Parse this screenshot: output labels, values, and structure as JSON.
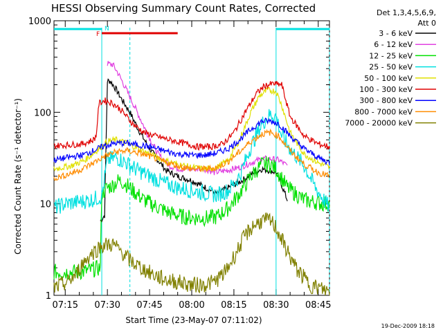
{
  "colors": {
    "background": "#ffffff",
    "axis": "#000000",
    "day_night_bar": "#00e0e0",
    "flare_flag": "#e00000"
  },
  "chart_data": {
    "type": "line",
    "title": "HESSI Observing Summary Count Rates, Corrected",
    "xlabel": "Start Time (23-May-07 07:11:02)",
    "ylabel": "Corrected Count Rate (s⁻¹ detector⁻¹)",
    "y_scale": "log",
    "ylim": [
      1,
      1000
    ],
    "xlim": [
      "07:11",
      "08:49"
    ],
    "x_ticks": [
      "07:15",
      "07:30",
      "07:45",
      "08:00",
      "08:15",
      "08:30",
      "08:45"
    ],
    "y_ticks": [
      "1",
      "10",
      "100",
      "1000"
    ],
    "grid": false,
    "legend": {
      "header": [
        "Det 1,3,4,5,6,9,",
        "Att 0"
      ],
      "placement": "outside-right"
    },
    "annotations": {
      "night_bars": [
        [
          "07:11",
          "07:28"
        ],
        [
          "08:30",
          "08:49"
        ]
      ],
      "saa_lines": [
        "07:28",
        "07:38",
        "08:30",
        "08:49"
      ],
      "flare_flag": {
        "label": "F",
        "start": "07:28",
        "end": "07:55"
      },
      "night_label": "N"
    },
    "series": [
      {
        "name": "3 - 6 keV",
        "color": "#000000",
        "points": [
          [
            "07:27:30",
            6.5
          ],
          [
            "07:29",
            7.5
          ],
          [
            "07:30",
            220
          ],
          [
            "07:31",
            220
          ],
          [
            "07:33",
            180
          ],
          [
            "07:35",
            140
          ],
          [
            "07:38",
            100
          ],
          [
            "07:41",
            65
          ],
          [
            "07:45",
            40
          ],
          [
            "07:48",
            30
          ],
          [
            "07:51",
            23
          ],
          [
            "07:55",
            20
          ],
          [
            "08:00",
            18
          ],
          [
            "08:05",
            15
          ],
          [
            "08:09",
            13
          ],
          [
            "08:13",
            15
          ],
          [
            "08:18",
            18
          ],
          [
            "08:22",
            22
          ],
          [
            "08:25",
            24
          ],
          [
            "08:28",
            23
          ],
          [
            "08:30",
            22
          ],
          [
            "08:32",
            16
          ],
          [
            "08:34",
            11
          ]
        ]
      },
      {
        "name": "6 - 12 keV",
        "color": "#e040e0",
        "points": [
          [
            "07:30",
            340
          ],
          [
            "07:32",
            330
          ],
          [
            "07:34",
            260
          ],
          [
            "07:37",
            170
          ],
          [
            "07:40",
            110
          ],
          [
            "07:44",
            60
          ],
          [
            "07:48",
            35
          ],
          [
            "07:52",
            26
          ],
          [
            "07:56",
            24
          ],
          [
            "08:00",
            24
          ],
          [
            "08:05",
            24
          ],
          [
            "08:08",
            22
          ],
          [
            "08:12",
            23
          ],
          [
            "08:17",
            25
          ],
          [
            "08:21",
            28
          ],
          [
            "08:25",
            31
          ],
          [
            "08:28",
            31
          ],
          [
            "08:31",
            30
          ],
          [
            "08:34",
            26
          ]
        ]
      },
      {
        "name": "12 - 25 keV",
        "color": "#00e000",
        "points": [
          [
            "07:11",
            1.8
          ],
          [
            "07:21",
            1.8
          ],
          [
            "07:27:30",
            2
          ],
          [
            "07:28",
            13
          ],
          [
            "07:30",
            15
          ],
          [
            "07:32",
            16
          ],
          [
            "07:34",
            18
          ],
          [
            "07:36",
            17
          ],
          [
            "07:39",
            14
          ],
          [
            "07:43",
            11
          ],
          [
            "07:47",
            9.5
          ],
          [
            "07:52",
            8
          ],
          [
            "07:57",
            7.2
          ],
          [
            "08:02",
            7
          ],
          [
            "08:06",
            7
          ],
          [
            "08:09",
            7.2
          ],
          [
            "08:13",
            9
          ],
          [
            "08:17",
            13
          ],
          [
            "08:21",
            20
          ],
          [
            "08:25",
            27
          ],
          [
            "08:28",
            27
          ],
          [
            "08:30",
            24
          ],
          [
            "08:32",
            19
          ],
          [
            "08:34",
            15
          ],
          [
            "08:40",
            11
          ],
          [
            "08:47",
            10
          ],
          [
            "08:49",
            10
          ]
        ]
      },
      {
        "name": "25 - 50 keV",
        "color": "#00e0e0",
        "points": [
          [
            "07:11",
            9
          ],
          [
            "07:15",
            10
          ],
          [
            "07:20",
            10.5
          ],
          [
            "07:24",
            11
          ],
          [
            "07:28",
            12
          ],
          [
            "07:30",
            30
          ],
          [
            "07:33",
            32
          ],
          [
            "07:36",
            29
          ],
          [
            "07:40",
            24
          ],
          [
            "07:45",
            20
          ],
          [
            "07:50",
            17
          ],
          [
            "07:55",
            15
          ],
          [
            "08:00",
            14
          ],
          [
            "08:05",
            13
          ],
          [
            "08:09",
            12.5
          ],
          [
            "08:13",
            14
          ],
          [
            "08:17",
            20
          ],
          [
            "08:21",
            42
          ],
          [
            "08:25",
            75
          ],
          [
            "08:28",
            95
          ],
          [
            "08:30",
            90
          ],
          [
            "08:32",
            55
          ],
          [
            "08:35",
            40
          ],
          [
            "08:40",
            26
          ],
          [
            "08:44",
            15
          ],
          [
            "08:49",
            9
          ]
        ]
      },
      {
        "name": "50 - 100 keV",
        "color": "#e0e000",
        "points": [
          [
            "07:11",
            24
          ],
          [
            "07:17",
            26
          ],
          [
            "07:22",
            30
          ],
          [
            "07:27",
            40
          ],
          [
            "07:30",
            48
          ],
          [
            "07:33",
            50
          ],
          [
            "07:37",
            46
          ],
          [
            "07:41",
            40
          ],
          [
            "07:45",
            35
          ],
          [
            "07:50",
            30
          ],
          [
            "07:55",
            27
          ],
          [
            "08:00",
            25
          ],
          [
            "08:05",
            24
          ],
          [
            "08:09",
            25
          ],
          [
            "08:13",
            30
          ],
          [
            "08:17",
            50
          ],
          [
            "08:21",
            100
          ],
          [
            "08:24",
            150
          ],
          [
            "08:27",
            175
          ],
          [
            "08:30",
            170
          ],
          [
            "08:32",
            120
          ],
          [
            "08:35",
            60
          ],
          [
            "08:40",
            35
          ],
          [
            "08:45",
            28
          ],
          [
            "08:49",
            25
          ]
        ]
      },
      {
        "name": "100 - 300 keV",
        "color": "#e00000",
        "points": [
          [
            "07:11",
            43
          ],
          [
            "07:16",
            44
          ],
          [
            "07:21",
            45
          ],
          [
            "07:25",
            50
          ],
          [
            "07:26",
            55
          ],
          [
            "07:27",
            125
          ],
          [
            "07:29",
            135
          ],
          [
            "07:32",
            125
          ],
          [
            "07:35",
            105
          ],
          [
            "07:39",
            75
          ],
          [
            "07:43",
            60
          ],
          [
            "07:47",
            55
          ],
          [
            "07:52",
            50
          ],
          [
            "07:57",
            46
          ],
          [
            "08:02",
            42
          ],
          [
            "08:07",
            42
          ],
          [
            "08:11",
            45
          ],
          [
            "08:15",
            60
          ],
          [
            "08:19",
            100
          ],
          [
            "08:23",
            160
          ],
          [
            "08:26",
            195
          ],
          [
            "08:29",
            205
          ],
          [
            "08:32",
            200
          ],
          [
            "08:35",
            90
          ],
          [
            "08:40",
            55
          ],
          [
            "08:45",
            45
          ],
          [
            "08:49",
            42
          ]
        ]
      },
      {
        "name": "300 - 800 keV",
        "color": "#0000ff",
        "points": [
          [
            "07:11",
            30
          ],
          [
            "07:16",
            32
          ],
          [
            "07:21",
            34
          ],
          [
            "07:25",
            38
          ],
          [
            "07:29",
            43
          ],
          [
            "07:33",
            46
          ],
          [
            "07:37",
            46
          ],
          [
            "07:41",
            44
          ],
          [
            "07:45",
            42
          ],
          [
            "07:50",
            38
          ],
          [
            "07:55",
            35
          ],
          [
            "08:00",
            34
          ],
          [
            "08:05",
            34
          ],
          [
            "08:09",
            36
          ],
          [
            "08:13",
            40
          ],
          [
            "08:17",
            50
          ],
          [
            "08:21",
            65
          ],
          [
            "08:25",
            80
          ],
          [
            "08:28",
            80
          ],
          [
            "08:31",
            75
          ],
          [
            "08:35",
            55
          ],
          [
            "08:40",
            40
          ],
          [
            "08:45",
            32
          ],
          [
            "08:49",
            28
          ]
        ]
      },
      {
        "name": "800 - 7000 keV",
        "color": "#ff8c00",
        "points": [
          [
            "07:11",
            19
          ],
          [
            "07:16",
            21
          ],
          [
            "07:21",
            24
          ],
          [
            "07:25",
            28
          ],
          [
            "07:29",
            33
          ],
          [
            "07:33",
            37
          ],
          [
            "07:37",
            38
          ],
          [
            "07:41",
            36
          ],
          [
            "07:45",
            33
          ],
          [
            "07:50",
            29
          ],
          [
            "07:55",
            26
          ],
          [
            "08:00",
            24
          ],
          [
            "08:05",
            24
          ],
          [
            "08:09",
            25
          ],
          [
            "08:13",
            29
          ],
          [
            "08:17",
            37
          ],
          [
            "08:21",
            48
          ],
          [
            "08:25",
            58
          ],
          [
            "08:28",
            60
          ],
          [
            "08:31",
            55
          ],
          [
            "08:35",
            38
          ],
          [
            "08:40",
            27
          ],
          [
            "08:45",
            22
          ],
          [
            "08:49",
            20
          ]
        ]
      },
      {
        "name": "7000 - 20000 keV",
        "color": "#808000",
        "points": [
          [
            "07:11",
            1.2
          ],
          [
            "07:16",
            1.4
          ],
          [
            "07:19",
            1.7
          ],
          [
            "07:21",
            2.2
          ],
          [
            "07:24",
            2.8
          ],
          [
            "07:28",
            3.5
          ],
          [
            "07:32",
            3.6
          ],
          [
            "07:35",
            3
          ],
          [
            "07:38",
            2.4
          ],
          [
            "07:42",
            2
          ],
          [
            "07:46",
            1.7
          ],
          [
            "07:50",
            1.5
          ],
          [
            "07:55",
            1.4
          ],
          [
            "08:00",
            1.3
          ],
          [
            "08:04",
            1.3
          ],
          [
            "08:08",
            1.4
          ],
          [
            "08:12",
            1.8
          ],
          [
            "08:16",
            3
          ],
          [
            "08:19",
            4.5
          ],
          [
            "08:22",
            5.8
          ],
          [
            "08:25",
            6.5
          ],
          [
            "08:28",
            6.5
          ],
          [
            "08:30",
            5.5
          ],
          [
            "08:33",
            3.5
          ],
          [
            "08:37",
            2
          ],
          [
            "08:42",
            1.3
          ],
          [
            "08:49",
            1.1
          ]
        ]
      }
    ]
  },
  "footer": {
    "timestamp": "19-Dec-2009 18:18"
  }
}
